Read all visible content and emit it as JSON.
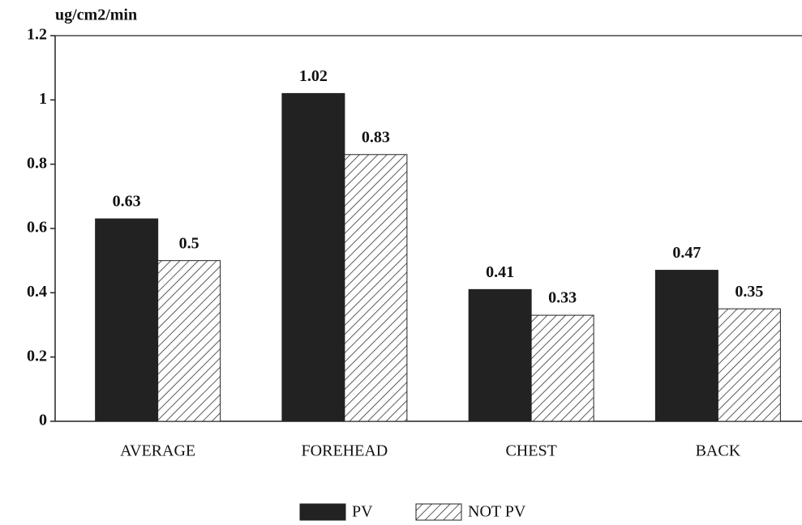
{
  "chart_data": {
    "type": "bar",
    "y_label": "ug/cm2/min",
    "categories": [
      "AVERAGE",
      "FOREHEAD",
      "CHEST",
      "BACK"
    ],
    "series": [
      {
        "name": "PV",
        "color": "#222222",
        "values": [
          0.63,
          1.02,
          0.41,
          0.47
        ]
      },
      {
        "name": "NOT PV",
        "color": "#333333",
        "values": [
          0.5,
          0.83,
          0.33,
          0.35
        ]
      }
    ],
    "ylim": [
      0,
      1.2
    ],
    "yticks": [
      0,
      0.2,
      0.4,
      0.6,
      0.8,
      1,
      1.2
    ],
    "grid": false,
    "legend": "bottom"
  }
}
